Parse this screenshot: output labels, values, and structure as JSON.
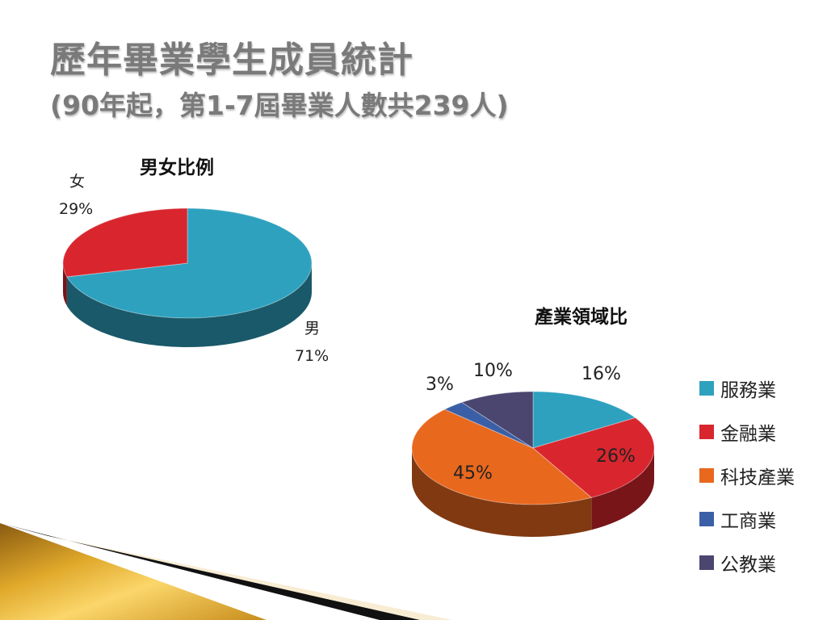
{
  "slide": {
    "title_line1": "歷年畢業學生成員統計",
    "title_line2": "(90年起，第1-7屆畢業人數共239人)"
  },
  "chart_data": [
    {
      "type": "pie",
      "title": "男女比例",
      "categories": [
        "男",
        "女"
      ],
      "values": [
        71,
        29
      ],
      "value_labels": [
        "71%",
        "29%"
      ],
      "colors": [
        "#2ea1bf",
        "#d9262e"
      ],
      "style": "3d"
    },
    {
      "type": "pie",
      "title": "產業領域比",
      "categories": [
        "服務業",
        "金融業",
        "科技產業",
        "工商業",
        "公教業"
      ],
      "values": [
        16,
        26,
        45,
        3,
        10
      ],
      "value_labels": [
        "16%",
        "26%",
        "45%",
        "3%",
        "10%"
      ],
      "colors": [
        "#2ea1bf",
        "#d9262e",
        "#e8681e",
        "#3a5fa6",
        "#4a4670"
      ],
      "legend": "right",
      "style": "3d"
    }
  ]
}
